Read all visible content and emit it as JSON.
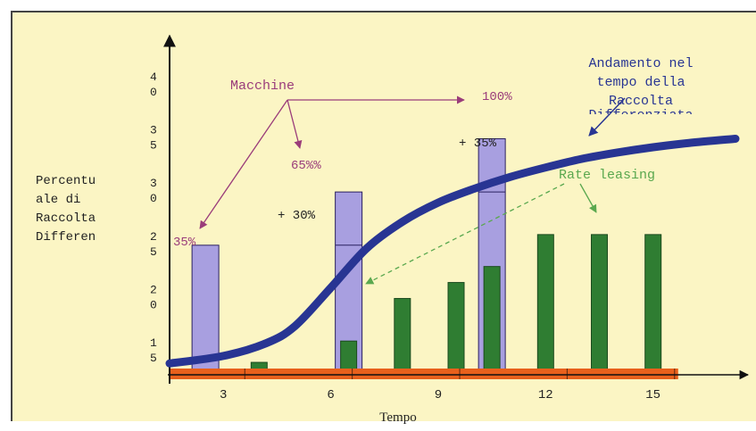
{
  "chart_data": {
    "type": "bar",
    "title": "",
    "xlabel": "Tempo",
    "ylabel_lines": [
      "Percentu",
      "ale di",
      "Raccolta",
      "Differen"
    ],
    "y_tick_labels": [
      {
        "v": 40,
        "lines": [
          "4",
          "0"
        ]
      },
      {
        "v": 35,
        "lines": [
          "3",
          "5"
        ]
      },
      {
        "v": 30,
        "lines": [
          "3",
          "0"
        ]
      },
      {
        "v": 25,
        "lines": [
          "2",
          "5"
        ]
      },
      {
        "v": 20,
        "lines": [
          "2",
          "0"
        ]
      },
      {
        "v": 15,
        "lines": [
          "1",
          "5"
        ]
      }
    ],
    "ylim": [
      13,
      43
    ],
    "xlim": [
      1.5,
      17.4
    ],
    "x_ticks": [
      3,
      6,
      9,
      12,
      15
    ],
    "x_tick_labels": [
      "3",
      "6",
      "9",
      "12",
      "15"
    ],
    "macchine_bars": {
      "name": "Macchine",
      "x": [
        2.5,
        6.5,
        10.5
      ],
      "values": [
        25,
        30,
        35
      ],
      "segments": [
        25,
        25,
        30
      ]
    },
    "leasing_bars": {
      "name": "Rate leasing",
      "x": [
        4,
        6.5,
        8,
        9.5,
        10.5,
        12,
        13.5,
        15
      ],
      "values": [
        14,
        16,
        20,
        21.5,
        23,
        26,
        26,
        26
      ]
    },
    "curve": {
      "name": "Andamento nel tempo della Raccolta Differenziata",
      "x": [
        1.5,
        3,
        4.2,
        5,
        6,
        7,
        8,
        9,
        10,
        11,
        12,
        13,
        14,
        15,
        16,
        17.3
      ],
      "values": [
        13.9,
        14.6,
        15.8,
        17.4,
        21,
        24.7,
        27.2,
        29,
        30.3,
        31.4,
        32.3,
        33.1,
        33.7,
        34.2,
        34.6,
        35
      ]
    },
    "annotations": {
      "macchine": "Macchine",
      "rate_leasing": "Rate leasing",
      "andamento": [
        "Andamento nel",
        "tempo della",
        "Raccolta"
      ],
      "andamento_cut": "Differenziata",
      "pct_35": "35%",
      "pct_65": "65%%",
      "pct_100": "100%",
      "plus_30": "+ 30%",
      "plus_35": "+ 35%"
    },
    "colors": {
      "background": "#fbf5c4",
      "macchine": "#a89fe0",
      "leasing": "#2f7d32",
      "curve": "#283593",
      "baseline": "#e8601c",
      "macchine_text": "#9a3c7a",
      "leasing_text": "#5aa84f",
      "axis": "#111111"
    }
  }
}
